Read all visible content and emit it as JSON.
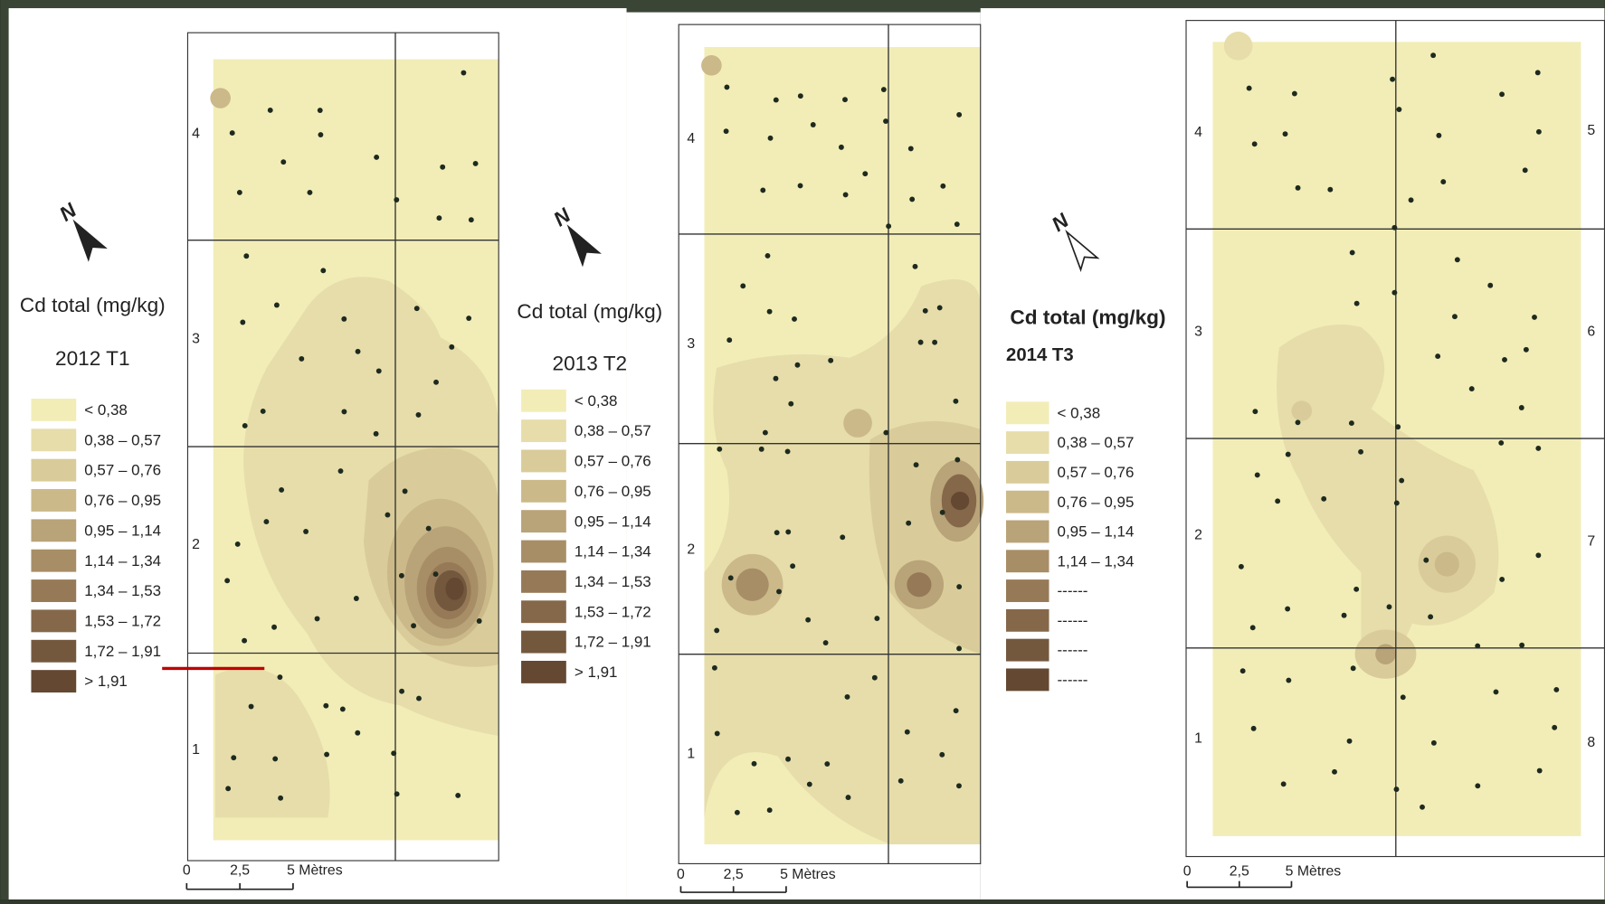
{
  "panels": [
    {
      "north": "N",
      "title": "Cd total (mg/kg)",
      "subtitle": "2012 T1",
      "legend": [
        {
          "label": "< 0,38",
          "color": "#f2edb7"
        },
        {
          "label": "0,38 – 0,57",
          "color": "#e6ddab"
        },
        {
          "label": "0,57 – 0,76",
          "color": "#d9cc9a"
        },
        {
          "label": "0,76 – 0,95",
          "color": "#cbb98a"
        },
        {
          "label": "0,95 – 1,14",
          "color": "#b9a378"
        },
        {
          "label": "1,14 – 1,34",
          "color": "#a88e66"
        },
        {
          "label": "1,34 – 1,53",
          "color": "#967a57"
        },
        {
          "label": "1,53 – 1,72",
          "color": "#85684a"
        },
        {
          "label": "1,72 – 1,91",
          "color": "#74583e"
        },
        {
          "label": "> 1,91",
          "color": "#644832"
        }
      ],
      "row_labels": [
        "4",
        "3",
        "2",
        "1"
      ],
      "scale": [
        "0",
        "2,5",
        "5 Mètres"
      ]
    },
    {
      "north": "N",
      "title": "Cd total (mg/kg)",
      "subtitle": "2013 T2",
      "legend": [
        {
          "label": "< 0,38",
          "color": "#f2edb7"
        },
        {
          "label": "0,38 – 0,57",
          "color": "#e6ddab"
        },
        {
          "label": "0,57 – 0,76",
          "color": "#d9cc9a"
        },
        {
          "label": "0,76 – 0,95",
          "color": "#cbb98a"
        },
        {
          "label": "0,95 – 1,14",
          "color": "#b9a378"
        },
        {
          "label": "1,14 – 1,34",
          "color": "#a88e66"
        },
        {
          "label": "1,34 – 1,53",
          "color": "#967a57"
        },
        {
          "label": "1,53 – 1,72",
          "color": "#85684a"
        },
        {
          "label": "1,72 – 1,91",
          "color": "#74583e"
        },
        {
          "label": "> 1,91",
          "color": "#644832"
        }
      ],
      "row_labels": [
        "4",
        "3",
        "2",
        "1"
      ],
      "scale": [
        "0",
        "2,5",
        "5 Mètres"
      ]
    },
    {
      "north": "N",
      "title": "Cd total (mg/kg)",
      "subtitle": "2014 T3",
      "legend": [
        {
          "label": "< 0,38",
          "color": "#f2edb7"
        },
        {
          "label": "0,38 – 0,57",
          "color": "#e6ddab"
        },
        {
          "label": "0,57 – 0,76",
          "color": "#d9cc9a"
        },
        {
          "label": "0,76 – 0,95",
          "color": "#cbb98a"
        },
        {
          "label": "0,95 – 1,14",
          "color": "#b9a378"
        },
        {
          "label": "1,14 – 1,34",
          "color": "#a88e66"
        },
        {
          "label": "------",
          "color": "#967a57"
        },
        {
          "label": "------",
          "color": "#85684a"
        },
        {
          "label": "------",
          "color": "#74583e"
        },
        {
          "label": "------",
          "color": "#644832"
        }
      ],
      "row_labels": [
        "4",
        "3",
        "2",
        "1"
      ],
      "row_labels_right": [
        "5",
        "6",
        "7",
        "8"
      ],
      "scale": [
        "0",
        "2,5",
        "5 Mètres"
      ]
    }
  ]
}
